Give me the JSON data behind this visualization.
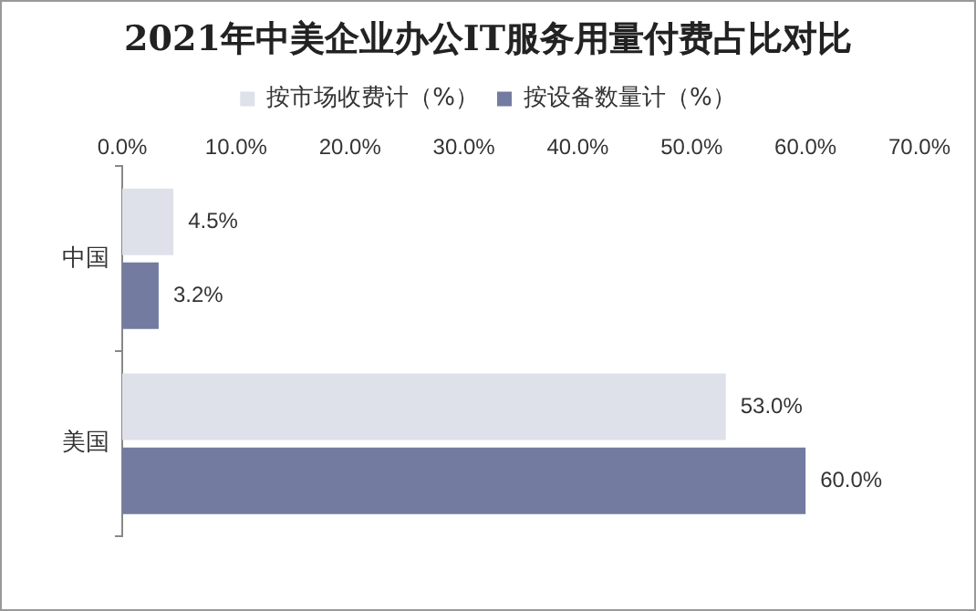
{
  "chart_data": {
    "type": "bar",
    "orientation": "horizontal",
    "title": "2021年中美企业办公IT服务用量付费占比对比",
    "categories": [
      "中国",
      "美国"
    ],
    "series": [
      {
        "name": "按市场收费计（%）",
        "color": "#dfe1ea",
        "values": [
          4.5,
          53.0
        ],
        "value_labels": [
          "4.5%",
          "53.0%"
        ]
      },
      {
        "name": "按设备数量计（%）",
        "color": "#737ca0",
        "values": [
          3.2,
          60.0
        ],
        "value_labels": [
          "3.2%",
          "60.0%"
        ]
      }
    ],
    "xlim": [
      0,
      70
    ],
    "xticks": [
      {
        "value": 0,
        "label": "0.0%"
      },
      {
        "value": 10,
        "label": "10.0%"
      },
      {
        "value": 20,
        "label": "20.0%"
      },
      {
        "value": 30,
        "label": "30.0%"
      },
      {
        "value": 40,
        "label": "40.0%"
      },
      {
        "value": 50,
        "label": "50.0%"
      },
      {
        "value": 60,
        "label": "60.0%"
      },
      {
        "value": 70,
        "label": "70.0%"
      }
    ],
    "grid": false,
    "legend": "top"
  }
}
